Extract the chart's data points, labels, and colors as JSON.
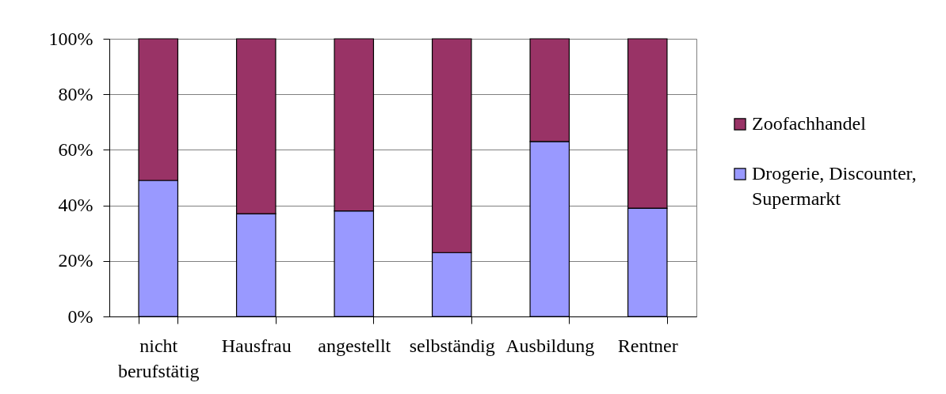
{
  "chart_data": {
    "type": "bar",
    "stacked": true,
    "categories": [
      "nicht berufstätig",
      "Hausfrau",
      "angestellt",
      "selbständig",
      "Ausbildung",
      "Rentner"
    ],
    "series": [
      {
        "name": "Drogerie, Discounter, Supermarkt",
        "color": "#9999ff",
        "values": [
          49,
          37,
          38,
          23,
          63,
          39
        ]
      },
      {
        "name": "Zoofachhandel",
        "color": "#993366",
        "values": [
          51,
          63,
          62,
          77,
          37,
          61
        ]
      }
    ],
    "ylim": [
      0,
      100
    ],
    "yticks": [
      {
        "value": 0,
        "label": "0%"
      },
      {
        "value": 20,
        "label": "20%"
      },
      {
        "value": 40,
        "label": "40%"
      },
      {
        "value": 60,
        "label": "60%"
      },
      {
        "value": 80,
        "label": "80%"
      },
      {
        "value": 100,
        "label": "100%"
      }
    ],
    "grid": "y",
    "legend": "right"
  }
}
